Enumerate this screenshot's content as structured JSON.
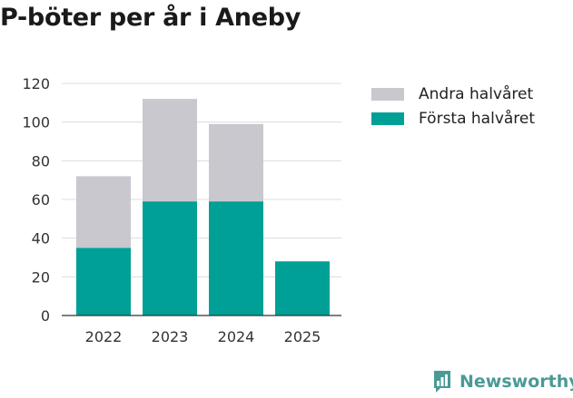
{
  "chart_data": {
    "type": "bar",
    "stacked": true,
    "title": "P-böter per år i Aneby",
    "categories": [
      "2022",
      "2023",
      "2024",
      "2025"
    ],
    "series": [
      {
        "name": "Första halvåret",
        "values": [
          35,
          59,
          59,
          28
        ],
        "color": "#00a096"
      },
      {
        "name": "Andra halvåret",
        "values": [
          37,
          53,
          40,
          0
        ],
        "color": "#c8c8ce"
      }
    ],
    "ylim": [
      0,
      120
    ],
    "yticks": [
      0,
      20,
      40,
      60,
      80,
      100,
      120
    ],
    "grid": true,
    "legend_position": "right"
  },
  "legend": [
    {
      "label": "Andra halvåret",
      "color": "#c8c8ce"
    },
    {
      "label": "Första halvåret",
      "color": "#00a096"
    }
  ],
  "brand": {
    "name": "Newsworthy",
    "icon": "newsworthy-logo-icon",
    "color": "#4a9a96"
  }
}
